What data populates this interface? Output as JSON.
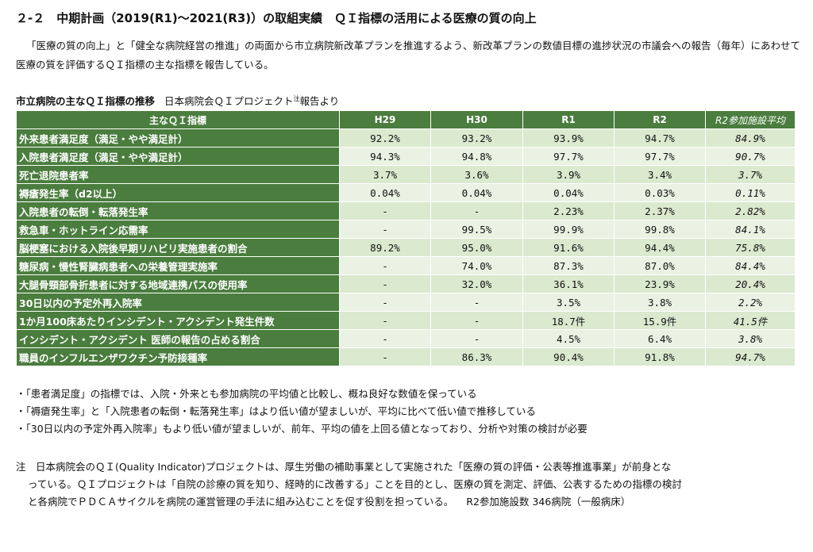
{
  "heading": "２-２　中期計画（2019(R1)～2021(R3)）の取組実績　ＱＩ指標の活用による医療の質の向上",
  "intro": "「医療の質の向上」と「健全な病院経営の推進」の両面から市立病院新改革プランを推進するよう、新改革プランの数値目標の進捗状況の市議会への報告（毎年）にあわせて医療の質を評価するＱＩ指標の主な指標を報告している。",
  "table_caption": {
    "main": "市立病院の主なＱＩ指標の推移",
    "sub": "日本病院会ＱＩプロジェクト",
    "note_mark": "注",
    "suffix": "報告より"
  },
  "table": {
    "headers": [
      "主なＱＩ指標",
      "H29",
      "H30",
      "R1",
      "R2",
      "R2参加施設平均"
    ],
    "rows": [
      {
        "label": "外来患者満足度（満足・やや満足計）",
        "values": [
          "92.2%",
          "93.2%",
          "93.9%",
          "94.7%",
          "84.9%"
        ]
      },
      {
        "label": "入院患者満足度（満足・やや満足計）",
        "values": [
          "94.3%",
          "94.8%",
          "97.7%",
          "97.7%",
          "90.7%"
        ]
      },
      {
        "label": "死亡退院患者率",
        "values": [
          "3.7%",
          "3.6%",
          "3.9%",
          "3.4%",
          "3.7%"
        ]
      },
      {
        "label": "褥瘡発生率（d2以上）",
        "values": [
          "0.04%",
          "0.04%",
          "0.04%",
          "0.03%",
          "0.11%"
        ]
      },
      {
        "label": "入院患者の転倒・転落発生率",
        "values": [
          "-",
          "-",
          "2.23%",
          "2.37%",
          "2.82%"
        ]
      },
      {
        "label": "救急車・ホットライン応需率",
        "values": [
          "-",
          "99.5%",
          "99.9%",
          "99.8%",
          "84.1%"
        ]
      },
      {
        "label": "脳梗塞における入院後早期リハビリ実施患者の割合",
        "values": [
          "89.2%",
          "95.0%",
          "91.6%",
          "94.4%",
          "75.8%"
        ]
      },
      {
        "label": "糖尿病・慢性腎臓病患者への栄養管理実施率",
        "values": [
          "-",
          "74.0%",
          "87.3%",
          "87.0%",
          "84.4%"
        ]
      },
      {
        "label": "大腿骨頸部骨折患者に対する地域連携パスの使用率",
        "values": [
          "-",
          "32.0%",
          "36.1%",
          "23.9%",
          "20.4%"
        ]
      },
      {
        "label": "30日以内の予定外再入院率",
        "values": [
          "-",
          "-",
          "3.5%",
          "3.8%",
          "2.2%"
        ]
      },
      {
        "label": "1か月100床あたりインシデント・アクシデント発生件数",
        "values": [
          "-",
          "-",
          "18.7件",
          "15.9件",
          "41.5件"
        ]
      },
      {
        "label": "インシデント・アクシデント 医師の報告の占める割合",
        "values": [
          "-",
          "-",
          "4.5%",
          "6.4%",
          "3.8%"
        ]
      },
      {
        "label": "職員のインフルエンザワクチン予防接種率",
        "values": [
          "-",
          "86.3%",
          "90.4%",
          "91.8%",
          "94.7%"
        ]
      }
    ]
  },
  "notes": [
    "・「患者満足度」の指標では、入院・外来とも参加病院の平均値と比較し、概ね良好な数値を保っている",
    "・「褥瘡発生率」と「入院患者の転倒・転落発生率」はより低い値が望ましいが、平均に比べて低い値で推移している",
    "・「30日以内の予定外再入院率」もより低い値が望ましいが、前年、平均の値を上回る値となっており、分析や対策の検討が必要"
  ],
  "footnote": {
    "line1": "注　日本病院会のＱＩ(Quality Indicator)プロジェクトは、厚生労働の補助事業として実施された「医療の質の評価・公表等推進事業」が前身とな",
    "line2": "っている。ＱＩプロジェクトは「自院の診療の質を知り、経時的に改善する」ことを目的とし、医療の質を測定、評価、公表するための指標の検討",
    "line3": "と各病院でＰＤＣＡサイクルを病院の運営管理の手法に組み込むことを促す役割を担っている。",
    "tail": "R2参加施設数 346病院（一般病床）"
  }
}
